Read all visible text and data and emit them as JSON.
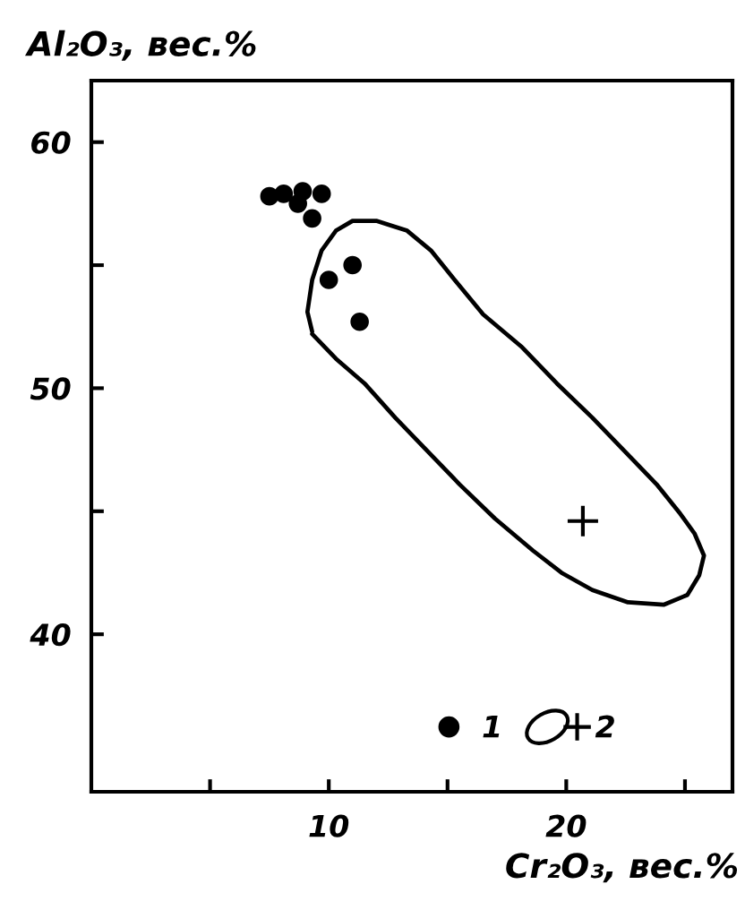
{
  "chart_data": {
    "type": "scatter",
    "xlabel": "Cr₂O₃, вес.%",
    "ylabel": "Al₂O₃, вес.%",
    "xlim": [
      0,
      27
    ],
    "ylim": [
      33.6,
      62.5
    ],
    "xticks": [
      {
        "value": 5,
        "label": null
      },
      10,
      {
        "value": 15,
        "label": null
      },
      20,
      {
        "value": 25,
        "label": null
      }
    ],
    "yticks": [
      40,
      {
        "value": 45,
        "label": null
      },
      50,
      {
        "value": 55,
        "label": null
      },
      60
    ],
    "grid": false,
    "legend": "bottom right",
    "series": [
      {
        "name": "1",
        "marker": "circle",
        "color": "#000000",
        "x": [
          7.5,
          8.1,
          8.9,
          9.7,
          8.7,
          9.3,
          11.0,
          10.0,
          11.3
        ],
        "values": [
          57.8,
          57.9,
          58.0,
          57.9,
          57.5,
          56.9,
          55.0,
          54.4,
          52.7
        ]
      },
      {
        "name": "2",
        "type": "line",
        "color": "#000000",
        "line_style": "solid",
        "x": [
          9.3,
          10.3,
          11.5,
          12.8,
          14.0,
          15.5,
          17.0,
          18.6,
          19.8,
          21.1,
          22.6,
          24.1,
          25.1,
          25.6,
          25.8,
          25.4,
          24.8,
          23.8,
          22.6,
          21.1,
          19.6,
          18.1,
          16.5,
          15.3,
          14.3,
          13.3,
          12.0,
          11.0,
          10.3,
          9.7,
          9.3,
          9.1,
          9.3
        ],
        "values": [
          52.2,
          51.2,
          50.2,
          48.8,
          47.6,
          46.1,
          44.7,
          43.4,
          42.5,
          41.8,
          41.3,
          41.2,
          41.6,
          42.4,
          43.2,
          44.1,
          44.9,
          46.1,
          47.3,
          48.8,
          50.2,
          51.7,
          53.0,
          54.4,
          55.6,
          56.4,
          56.8,
          56.8,
          56.4,
          55.6,
          54.4,
          53.1,
          52.3
        ]
      },
      {
        "type": "scatter",
        "marker": "cross",
        "color": "#000000",
        "x": [
          20.7
        ],
        "values": [
          44.6
        ]
      }
    ]
  }
}
